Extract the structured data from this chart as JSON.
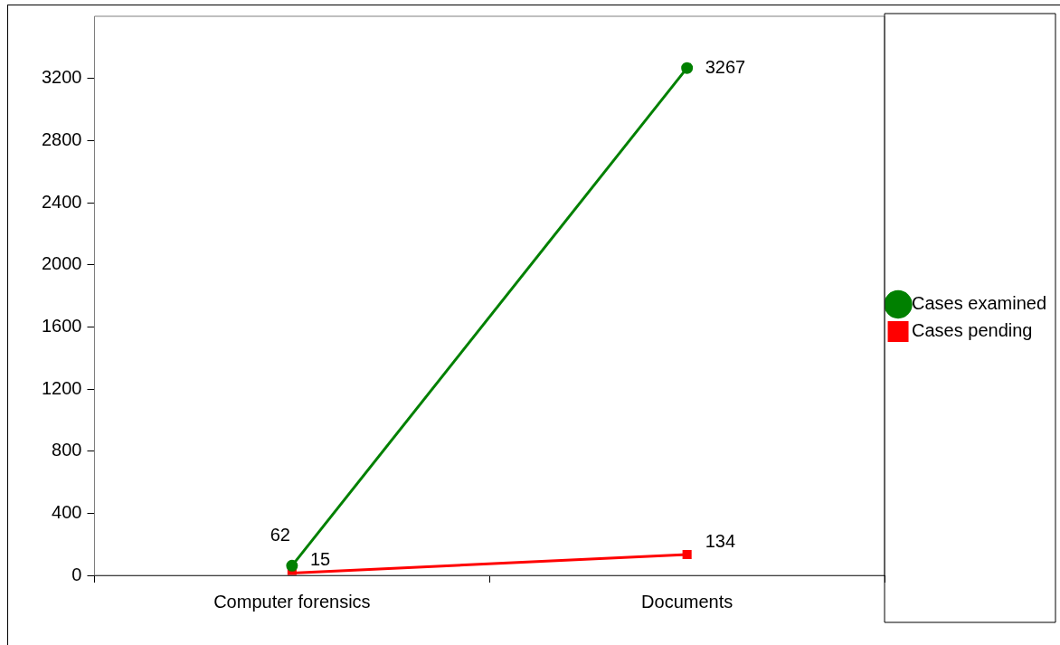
{
  "chart_data": {
    "type": "line",
    "categories": [
      "Computer forensics",
      "Documents"
    ],
    "series": [
      {
        "name": "Cases examined",
        "color": "#008000",
        "values": [
          62,
          3267
        ],
        "marker": "circle"
      },
      {
        "name": "Cases pending",
        "color": "#ff0000",
        "values": [
          15,
          134
        ],
        "marker": "square"
      }
    ],
    "ylim": [
      0,
      3600
    ],
    "yticks": [
      0,
      400,
      800,
      1200,
      1600,
      2000,
      2400,
      2800,
      3200
    ],
    "grid": false,
    "legend": "right",
    "data_labels": true,
    "line_style": "solid"
  }
}
